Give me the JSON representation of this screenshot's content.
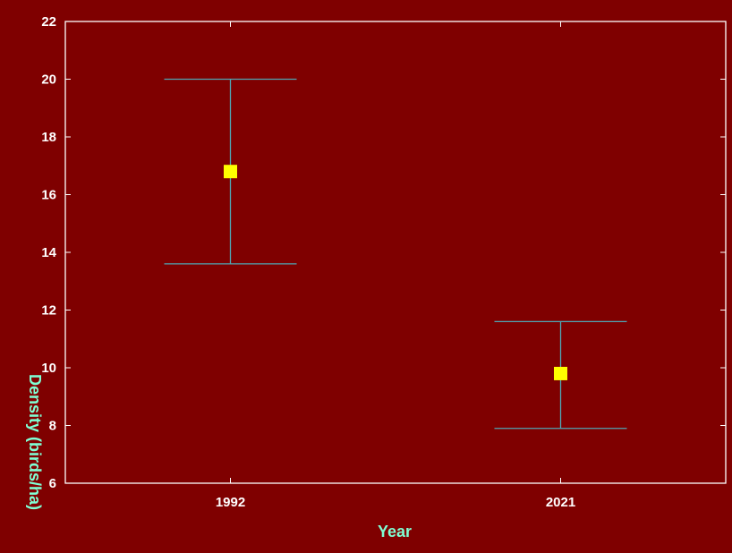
{
  "chart_data": {
    "type": "scatter",
    "categories": [
      "1992",
      "2021"
    ],
    "series": [
      {
        "values": [
          16.8,
          9.8
        ],
        "error_low": [
          13.6,
          7.9
        ],
        "error_high": [
          20.0,
          11.6
        ]
      }
    ],
    "xlabel": "Year",
    "ylabel": "Density (birds/ha)",
    "ylim": [
      6,
      22
    ],
    "yticks": [
      "6",
      "8",
      "10",
      "12",
      "14",
      "16",
      "18",
      "20",
      "22"
    ],
    "grid": false,
    "legend": "none"
  },
  "colors": {
    "background": "#7f0000",
    "plot_frame": "#ffffff",
    "marker": "#ffff00",
    "error_bar": "#4fa7b5",
    "tick_label": "#ffffff",
    "axis_title": "#7fffd4"
  }
}
